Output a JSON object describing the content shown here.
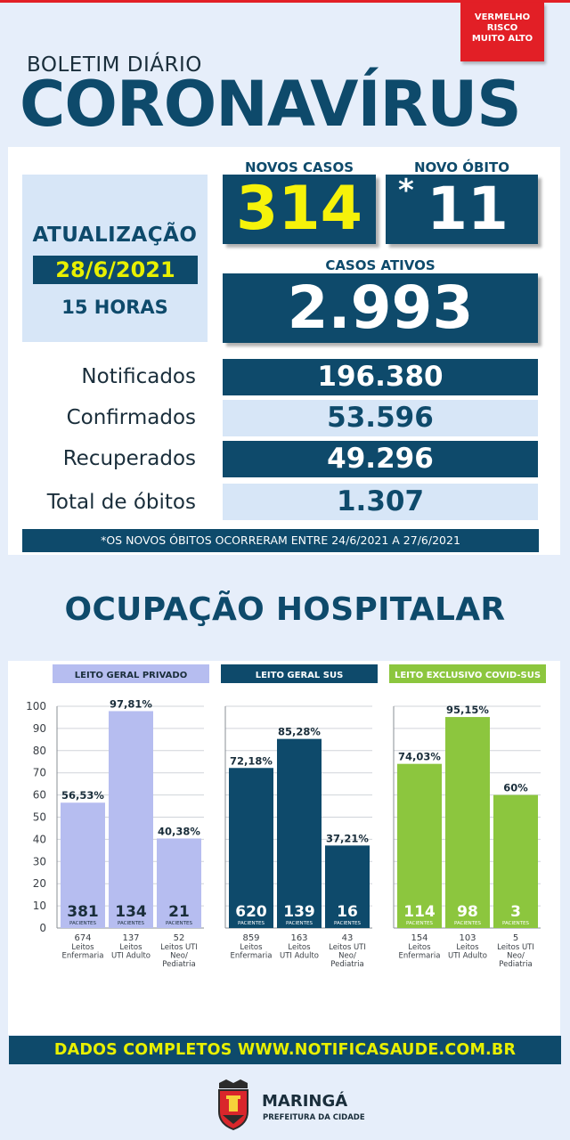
{
  "risk": {
    "line1": "VERMELHO",
    "line2": "RISCO",
    "line3": "MUITO ALTO"
  },
  "header": {
    "bulletin": "BOLETIM DIÁRIO",
    "title": "CORONAVÍRUS"
  },
  "update": {
    "label": "ATUALIZAÇÃO",
    "date": "28/6/2021",
    "hour": "15 HORAS"
  },
  "new_cases": {
    "label": "NOVOS CASOS",
    "value": "314"
  },
  "new_death": {
    "label": "NOVO ÓBITO",
    "marker": "*",
    "value": "11"
  },
  "active_cases": {
    "label": "CASOS ATIVOS",
    "value": "2.993"
  },
  "stats": {
    "notified": {
      "label": "Notificados",
      "value": "196.380"
    },
    "confirmed": {
      "label": "Confirmados",
      "value": "53.596"
    },
    "recovered": {
      "label": "Recuperados",
      "value": "49.296"
    },
    "total_deaths": {
      "label": "Total de óbitos",
      "value": "1.307"
    }
  },
  "footnote": "*OS NOVOS ÓBITOS OCORRERAM ENTRE 24/6/2021 A 27/6/2021",
  "hospital_title": "OCUPAÇÃO HOSPITALAR",
  "chart_data": [
    {
      "type": "bar",
      "title": "LEITO GERAL PRIVADO",
      "color": "#b6bdf0",
      "ylim": [
        0,
        100
      ],
      "yticks": [
        0,
        10,
        20,
        30,
        40,
        50,
        60,
        70,
        80,
        90,
        100
      ],
      "categories": [
        [
          "Leitos",
          "Enfermaria"
        ],
        [
          "Leitos",
          "UTI Adulto"
        ],
        [
          "Leitos UTI",
          "Neo/",
          "Pediatria"
        ]
      ],
      "beds": [
        "674",
        "137",
        "52"
      ],
      "values": [
        56.53,
        97.81,
        40.38
      ],
      "value_labels": [
        "56,53%",
        "97,81%",
        "40,38%"
      ],
      "patients": [
        "381",
        "134",
        "21"
      ],
      "patients_label": "PACIENTES"
    },
    {
      "type": "bar",
      "title": "LEITO GERAL SUS",
      "color": "#0e4a6b",
      "ylim": [
        0,
        100
      ],
      "categories": [
        [
          "Leitos",
          "Enfermaria"
        ],
        [
          "Leitos",
          "UTI Adulto"
        ],
        [
          "Leitos UTI",
          "Neo/",
          "Pediatria"
        ]
      ],
      "beds": [
        "859",
        "163",
        "43"
      ],
      "values": [
        72.18,
        85.28,
        37.21
      ],
      "value_labels": [
        "72,18%",
        "85,28%",
        "37,21%"
      ],
      "patients": [
        "620",
        "139",
        "16"
      ],
      "patients_label": "PACIENTES"
    },
    {
      "type": "bar",
      "title": "LEITO EXCLUSIVO COVID-SUS",
      "color": "#8cc63e",
      "ylim": [
        0,
        100
      ],
      "categories": [
        [
          "Leitos",
          "Enfermaria"
        ],
        [
          "Leitos",
          "UTI Adulto"
        ],
        [
          "Leitos UTI",
          "Neo/",
          "Pediatria"
        ]
      ],
      "beds": [
        "154",
        "103",
        "5"
      ],
      "values": [
        74.03,
        95.15,
        60
      ],
      "value_labels": [
        "74,03%",
        "95,15%",
        "60%"
      ],
      "patients": [
        "114",
        "98",
        "3"
      ],
      "patients_label": "PACIENTES"
    }
  ],
  "footer": "DADOS COMPLETOS  WWW.NOTIFICASAUDE.COM.BR",
  "logo": {
    "city": "MARINGÁ",
    "subtitle": "PREFEITURA DA CIDADE"
  }
}
